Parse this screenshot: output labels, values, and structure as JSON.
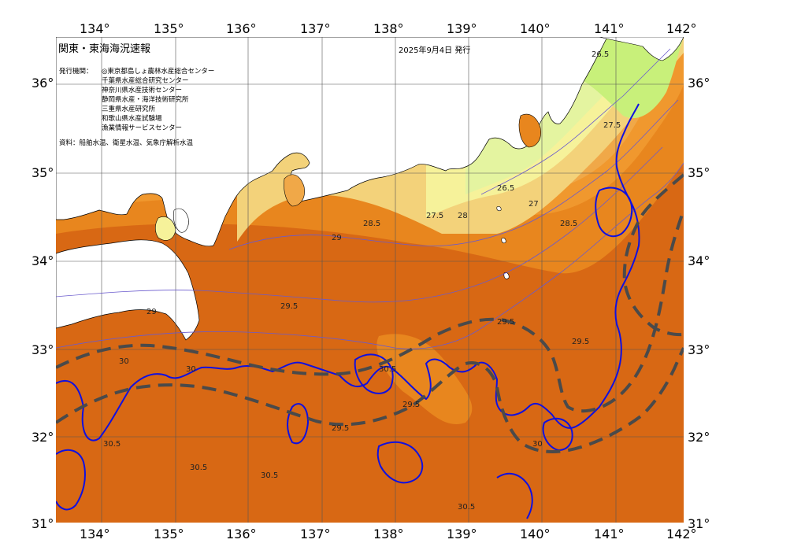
{
  "header": {
    "title": "関東・東海海況速報",
    "date": "2025年9月4日 発行"
  },
  "issuers": {
    "label": "発行機関：",
    "institutions": [
      "◎東京都島しょ農林水産総合センター",
      "千葉県水産総合研究センター",
      "神奈川県水産技術センター",
      "静岡県水産・海洋技術研究所",
      "三重県水産研究所",
      "和歌山県水産試験場",
      "漁業情報サービスセンター"
    ]
  },
  "source": "資料：船舶水温、衛星水温、気象庁解析水温",
  "axes": {
    "longitude_labels": [
      "134°",
      "135°",
      "136°",
      "137°",
      "138°",
      "139°",
      "140°",
      "141°",
      "142°"
    ],
    "latitude_labels": [
      "36°",
      "35°",
      "34°",
      "33°",
      "32°",
      "31°"
    ]
  },
  "contour_labels": [
    "26.5",
    "27",
    "27.5",
    "28",
    "28.5",
    "29",
    "29.5",
    "30",
    "30.5"
  ],
  "colors": {
    "land": "#ffffff",
    "sst_26_5": "#c8f07a",
    "sst_27": "#e4f4a0",
    "sst_27_5": "#f6f29a",
    "sst_28": "#f3d27a",
    "sst_28_5": "#f0a848",
    "sst_29": "#f0982e",
    "sst_29_5": "#e8861e",
    "sst_30": "#d86814",
    "sst_30_5": "#c65614",
    "isotherm_30": "#1010e0",
    "kuroshio_axis": "#4a4a4a"
  }
}
